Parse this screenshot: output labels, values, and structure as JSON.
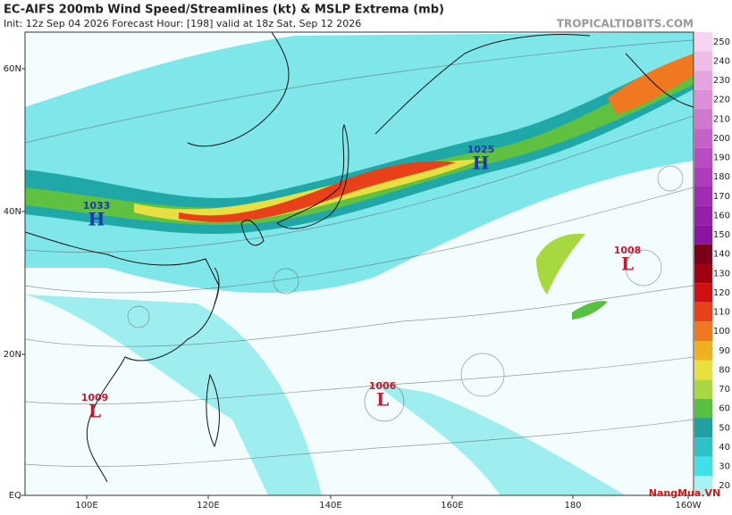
{
  "header": {
    "title": "EC-AIFS 200mb Wind Speed/Streamlines (kt) & MSLP Extrema (mb)",
    "subtitle": "Init: 12z Sep 04 2026   Forecast Hour: [198]   valid at 18z Sat, Sep 12 2026",
    "site": "TROPICALTIDBITS.COM"
  },
  "axes": {
    "lat_labels": [
      "60N",
      "40N",
      "20N",
      "EQ"
    ],
    "lon_labels": [
      "100E",
      "120E",
      "140E",
      "160E",
      "180",
      "160W"
    ]
  },
  "extrema": [
    {
      "symbol": "H",
      "value": 1033
    },
    {
      "symbol": "H",
      "value": 1025
    },
    {
      "symbol": "L",
      "value": 1008
    },
    {
      "symbol": "L",
      "value": 1006
    },
    {
      "symbol": "L",
      "value": 1009
    }
  ],
  "colorbar": {
    "ticks": [
      250,
      240,
      230,
      220,
      210,
      200,
      190,
      180,
      170,
      160,
      150,
      140,
      130,
      120,
      110,
      100,
      90,
      80,
      70,
      60,
      50,
      40,
      30,
      20
    ],
    "colors": [
      "#f7d4f0",
      "#f0bce8",
      "#e6a4e0",
      "#dc8ed8",
      "#d078d0",
      "#c462c8",
      "#b84cc0",
      "#ac3cba",
      "#a02cb2",
      "#9420aa",
      "#8a14a2",
      "#7a0018",
      "#a00010",
      "#d01010",
      "#e84018",
      "#f07820",
      "#f0b020",
      "#e8e040",
      "#a8d840",
      "#58c040",
      "#20a0a0",
      "#30c0c8",
      "#40e0e8",
      "#a8f4f4"
    ]
  },
  "watermark": "NangMua.VN"
}
